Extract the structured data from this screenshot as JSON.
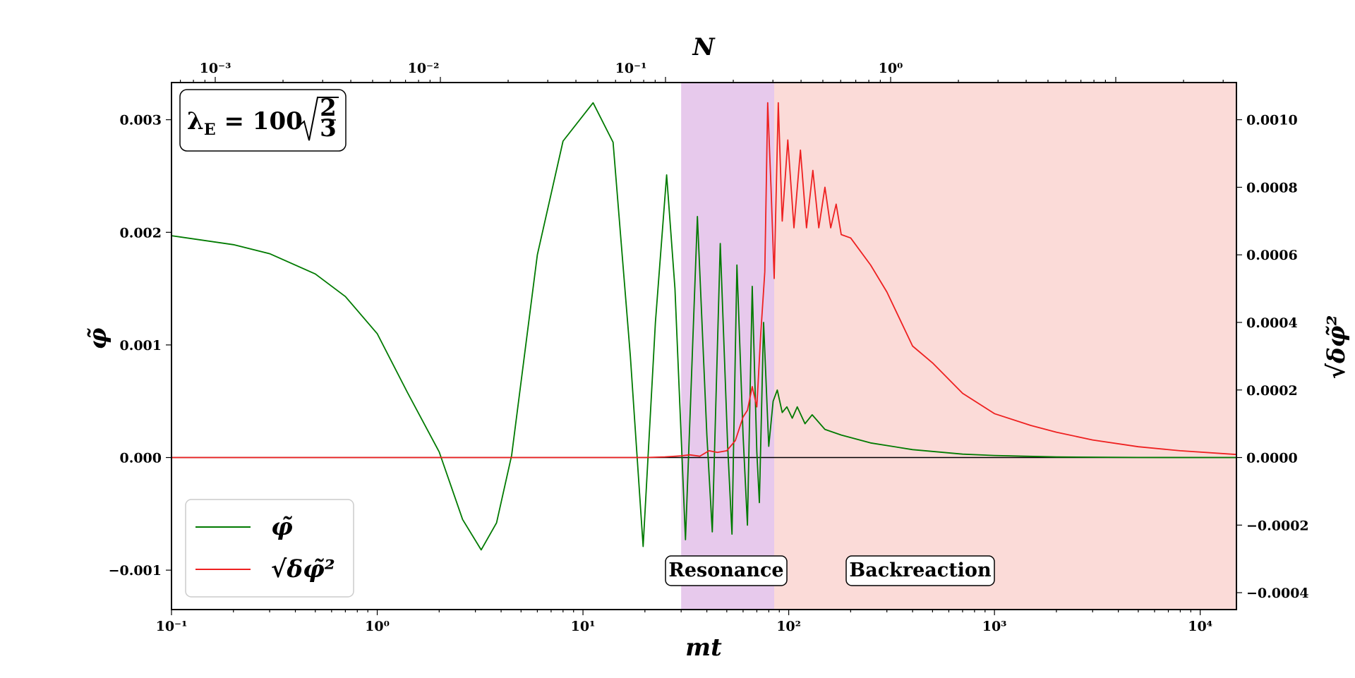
{
  "chart_data": {
    "type": "line",
    "xlabel": "mt",
    "top_xlabel": "N",
    "ylabel": "φ̃",
    "y2label": "√δφ̃²",
    "xscale": "log",
    "xlim": [
      0.1,
      15000
    ],
    "ylim": [
      -0.00135,
      0.00333
    ],
    "y2lim": [
      -0.00045,
      0.00111
    ],
    "x_ticks": [
      "10⁻¹",
      "10⁰",
      "10¹",
      "10²",
      "10³",
      "10⁴"
    ],
    "top_ticks": [
      "10⁻³",
      "10⁻²",
      "10⁻¹",
      "10⁰"
    ],
    "y_ticks": [
      "−0.001",
      "0.000",
      "0.001",
      "0.002",
      "0.003"
    ],
    "y2_ticks": [
      "−0.0004",
      "−0.0002",
      "0.0000",
      "0.0002",
      "0.0004",
      "0.0006",
      "0.0008",
      "0.0010"
    ],
    "regions": [
      {
        "label": "Resonance",
        "x": [
          30,
          85
        ],
        "color": "#d9a8e0"
      },
      {
        "label": "Backreaction",
        "x": [
          85,
          15000
        ],
        "color": "#f9c5c0"
      }
    ],
    "annotation": "λE = 100√(2/3)",
    "annotation_parts": {
      "lhs": "λ",
      "sub": "E",
      "eq": " = 100",
      "num": "2",
      "den": "3"
    },
    "legend": {
      "placement": "lower-left"
    },
    "series": [
      {
        "name": "φ̃",
        "legend_label": "φ̃",
        "color": "#007a00",
        "axis": "left",
        "points": [
          [
            0.1,
            0.00197
          ],
          [
            0.2,
            0.00189
          ],
          [
            0.3,
            0.00181
          ],
          [
            0.5,
            0.00163
          ],
          [
            0.7,
            0.00143
          ],
          [
            1.0,
            0.0011
          ],
          [
            1.4,
            0.00058
          ],
          [
            2.0,
            5e-05
          ],
          [
            2.6,
            -0.00055
          ],
          [
            3.2,
            -0.00082
          ],
          [
            3.8,
            -0.00058
          ],
          [
            4.5,
            2e-05
          ],
          [
            6.0,
            0.0018
          ],
          [
            8.0,
            0.00281
          ],
          [
            11.2,
            0.00315
          ],
          [
            14.0,
            0.0028
          ],
          [
            17.0,
            0.0009
          ],
          [
            19.6,
            -0.00079
          ],
          [
            22.5,
            0.0012
          ],
          [
            25.5,
            0.00251
          ],
          [
            28.0,
            0.0015
          ],
          [
            31.5,
            -0.00073
          ],
          [
            36.0,
            0.00214
          ],
          [
            40.0,
            0.0002
          ],
          [
            42.5,
            -0.00066
          ],
          [
            46.5,
            0.0019
          ],
          [
            50.5,
            0.0001
          ],
          [
            53.0,
            -0.00068
          ],
          [
            56.0,
            0.00171
          ],
          [
            60.0,
            0.0002
          ],
          [
            63.0,
            -0.0006
          ],
          [
            66.5,
            0.00152
          ],
          [
            70.0,
            5e-05
          ],
          [
            72.0,
            -0.0004
          ],
          [
            75.5,
            0.0012
          ],
          [
            80.0,
            0.0001
          ],
          [
            84.0,
            0.0005
          ],
          [
            88.0,
            0.0006
          ],
          [
            93.0,
            0.0004
          ],
          [
            98.0,
            0.00045
          ],
          [
            104.0,
            0.00035
          ],
          [
            110.0,
            0.00045
          ],
          [
            120.0,
            0.0003
          ],
          [
            130.0,
            0.00038
          ],
          [
            150.0,
            0.00025
          ],
          [
            180.0,
            0.0002
          ],
          [
            250.0,
            0.00013
          ],
          [
            400.0,
            7e-05
          ],
          [
            700.0,
            3e-05
          ],
          [
            1000.0,
            1.8e-05
          ],
          [
            2000.0,
            5e-06
          ],
          [
            5000.0,
            1e-06
          ],
          [
            15000.0,
            0.0
          ]
        ]
      },
      {
        "name": "√δφ̃²",
        "legend_label": "√δφ̃²",
        "color": "#ee2020",
        "axis": "right",
        "points": [
          [
            0.1,
            0.0
          ],
          [
            20.0,
            0.0
          ],
          [
            25.0,
            2e-06
          ],
          [
            30.0,
            5e-06
          ],
          [
            33.0,
            8e-06
          ],
          [
            37.0,
            4e-06
          ],
          [
            41.0,
            2e-05
          ],
          [
            45.0,
            1.5e-05
          ],
          [
            50.0,
            2e-05
          ],
          [
            55.0,
            5e-05
          ],
          [
            60.0,
            0.00012
          ],
          [
            63.0,
            0.00014
          ],
          [
            66.5,
            0.00021
          ],
          [
            70.0,
            0.00015
          ],
          [
            73.0,
            0.00036
          ],
          [
            76.5,
            0.00055
          ],
          [
            79.0,
            0.00105
          ],
          [
            82.0,
            0.0008
          ],
          [
            85.0,
            0.00053
          ],
          [
            89.0,
            0.00105
          ],
          [
            93.0,
            0.0007
          ],
          [
            99.0,
            0.00094
          ],
          [
            106.0,
            0.00068
          ],
          [
            114.0,
            0.00091
          ],
          [
            122.0,
            0.00068
          ],
          [
            131.0,
            0.00085
          ],
          [
            140.0,
            0.00068
          ],
          [
            150.0,
            0.0008
          ],
          [
            160.0,
            0.00068
          ],
          [
            170.0,
            0.00075
          ],
          [
            180.0,
            0.00066
          ],
          [
            200.0,
            0.00065
          ],
          [
            250.0,
            0.00057
          ],
          [
            300.0,
            0.00049
          ],
          [
            400.0,
            0.00033
          ],
          [
            500.0,
            0.00028
          ],
          [
            700.0,
            0.00019
          ],
          [
            1000.0,
            0.00013
          ],
          [
            1500.0,
            9.5e-05
          ],
          [
            2000.0,
            7.5e-05
          ],
          [
            3000.0,
            5.2e-05
          ],
          [
            5000.0,
            3.2e-05
          ],
          [
            8000.0,
            2e-05
          ],
          [
            15000.0,
            9e-06
          ]
        ]
      }
    ]
  }
}
